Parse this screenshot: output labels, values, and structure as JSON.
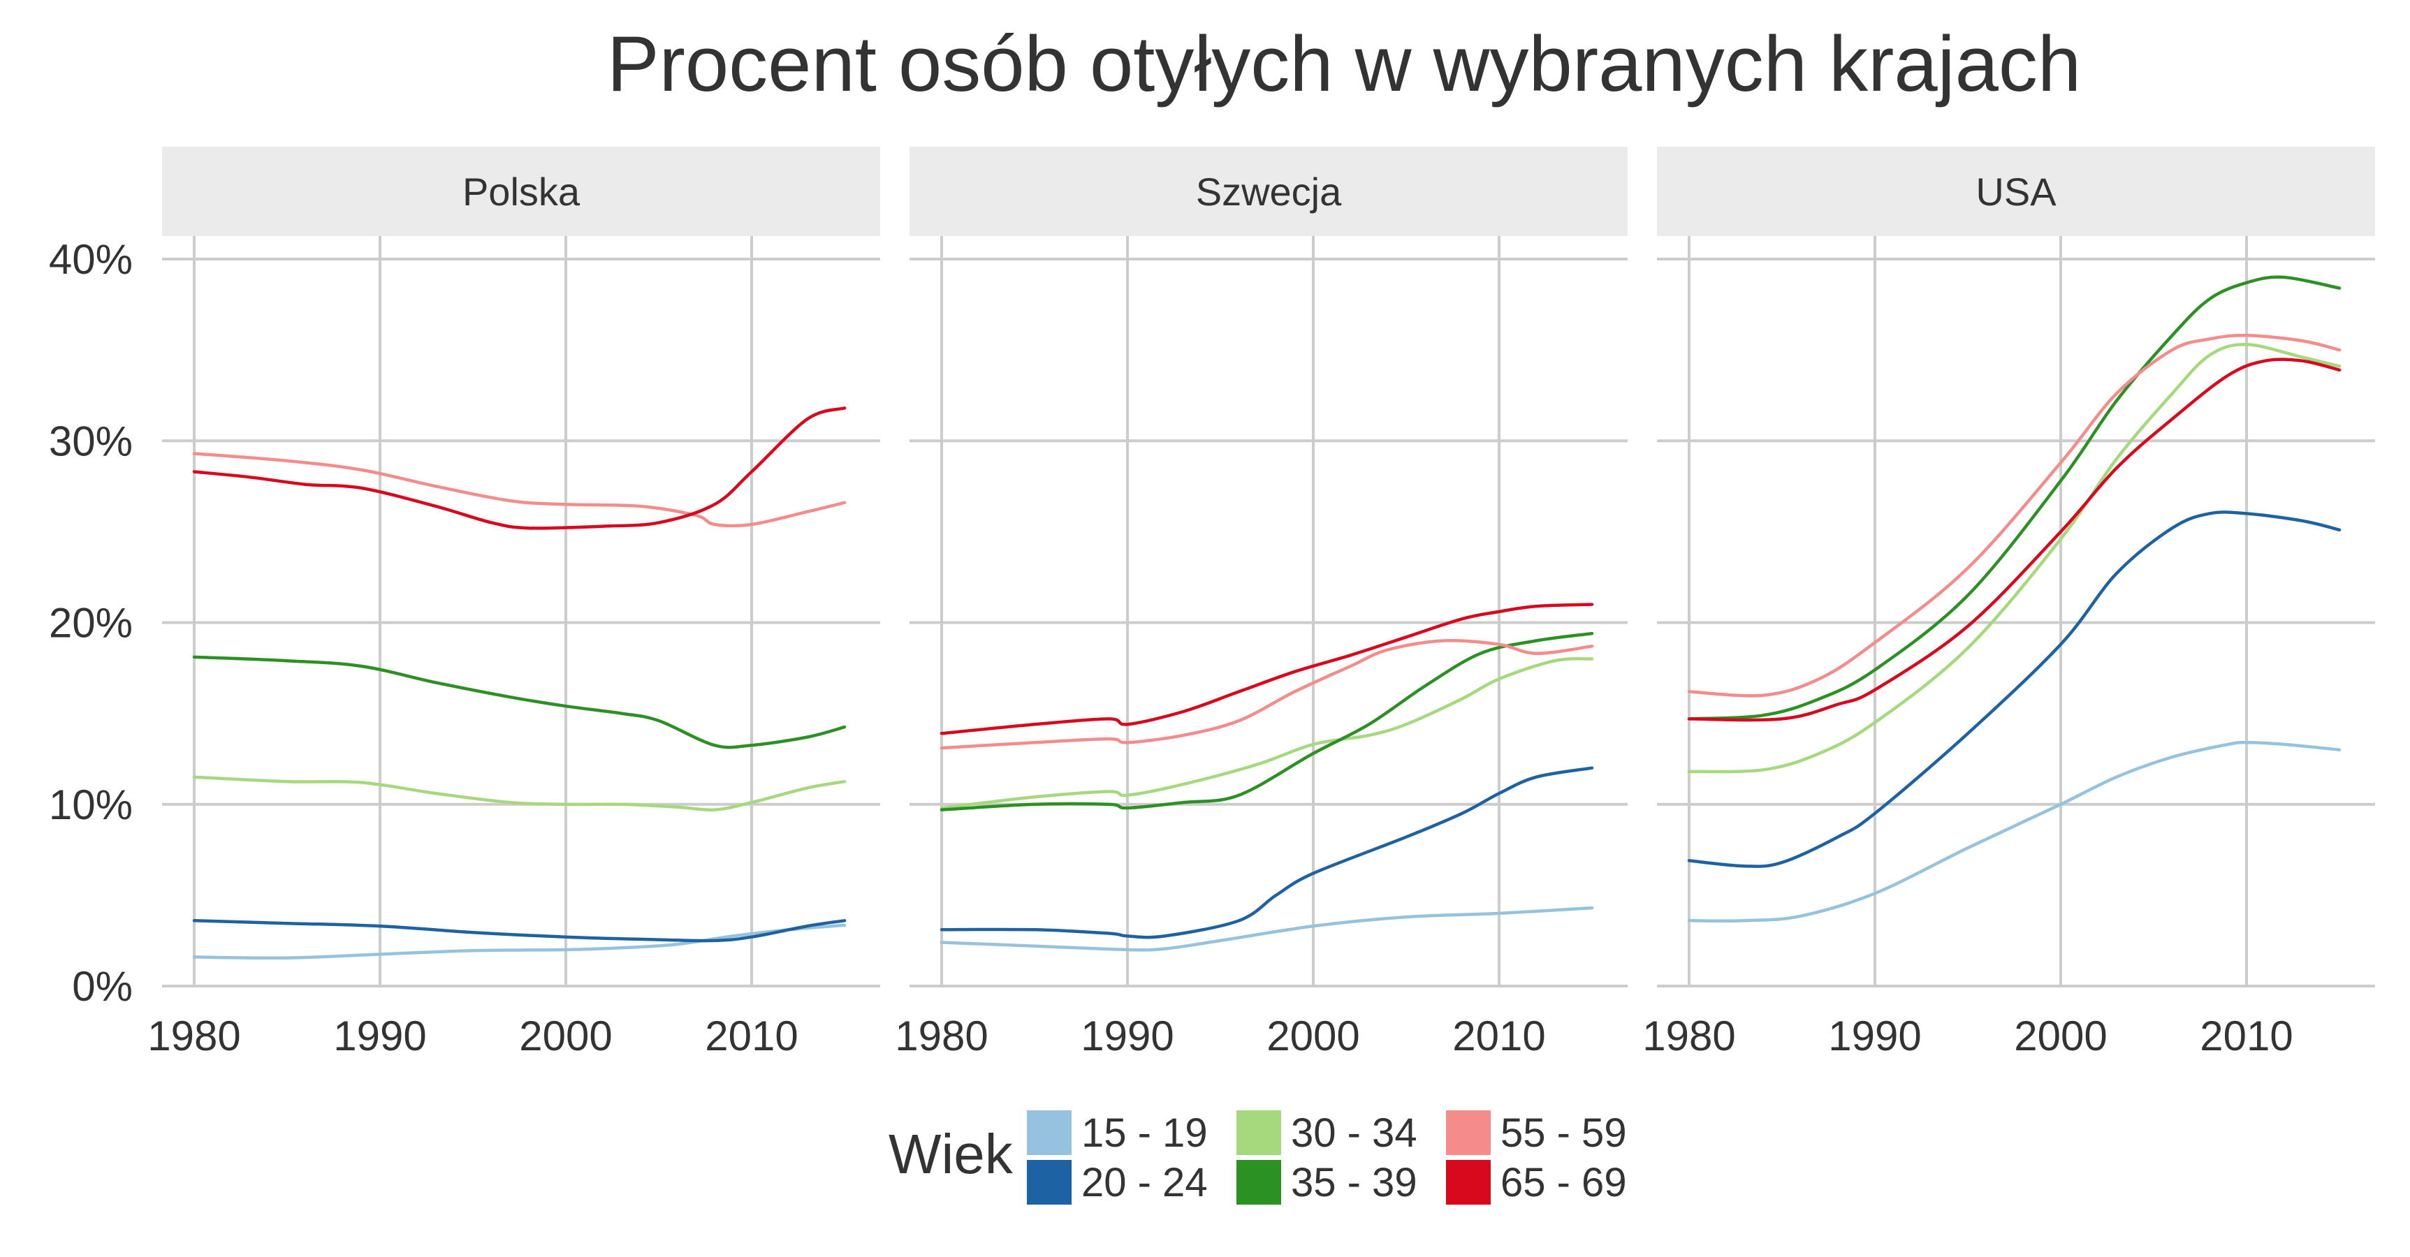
{
  "chart_data": {
    "type": "line",
    "title": "Procent osób otyłych w wybranych krajach",
    "xlabel": "",
    "ylabel": "",
    "xlim": [
      1978.3,
      2016.7
    ],
    "ylim": [
      0,
      40
    ],
    "x_ticks": [
      1980,
      1990,
      2000,
      2010
    ],
    "x_tick_labels": [
      "1980",
      "1990",
      "2000",
      "2010"
    ],
    "y_ticks": [
      0,
      10,
      20,
      30,
      40
    ],
    "y_tick_labels": [
      "0%",
      "10%",
      "20%",
      "30%",
      "40%"
    ],
    "grid": true,
    "legend": {
      "title": "Wiek",
      "position": "bottom",
      "entries": [
        {
          "label": "15 - 19",
          "color": "#95c3df"
        },
        {
          "label": "20 - 24",
          "color": "#1d62a2"
        },
        {
          "label": "30 - 34",
          "color": "#a6d97d"
        },
        {
          "label": "35 - 39",
          "color": "#2b9122"
        },
        {
          "label": "55 - 59",
          "color": "#f58b8b"
        },
        {
          "label": "65 - 69",
          "color": "#d8081d"
        }
      ]
    },
    "panels": [
      {
        "name": "Polska",
        "series": [
          {
            "name": "15 - 19",
            "color": "#95c3df",
            "points": [
              [
                1980,
                1.6
              ],
              [
                1985,
                1.55
              ],
              [
                1990,
                1.75
              ],
              [
                1995,
                1.95
              ],
              [
                2000,
                2.0
              ],
              [
                2003,
                2.1
              ],
              [
                2006,
                2.3
              ],
              [
                2009,
                2.75
              ],
              [
                2012,
                3.1
              ],
              [
                2015,
                3.35
              ]
            ]
          },
          {
            "name": "20 - 24",
            "color": "#1d62a2",
            "points": [
              [
                1980,
                3.6
              ],
              [
                1985,
                3.45
              ],
              [
                1990,
                3.3
              ],
              [
                1995,
                2.95
              ],
              [
                2000,
                2.7
              ],
              [
                2005,
                2.55
              ],
              [
                2008,
                2.5
              ],
              [
                2010,
                2.7
              ],
              [
                2013,
                3.3
              ],
              [
                2015,
                3.6
              ]
            ]
          },
          {
            "name": "30 - 34",
            "color": "#a6d97d",
            "points": [
              [
                1980,
                11.5
              ],
              [
                1985,
                11.25
              ],
              [
                1989,
                11.2
              ],
              [
                1993,
                10.6
              ],
              [
                1997,
                10.1
              ],
              [
                2000,
                10.0
              ],
              [
                2003,
                10.0
              ],
              [
                2006,
                9.85
              ],
              [
                2008,
                9.7
              ],
              [
                2010,
                10.1
              ],
              [
                2013,
                10.9
              ],
              [
                2015,
                11.25
              ]
            ]
          },
          {
            "name": "35 - 39",
            "color": "#2b9122",
            "points": [
              [
                1980,
                18.1
              ],
              [
                1985,
                17.9
              ],
              [
                1989,
                17.6
              ],
              [
                1993,
                16.7
              ],
              [
                1997,
                15.9
              ],
              [
                2000,
                15.4
              ],
              [
                2003,
                15.0
              ],
              [
                2005,
                14.6
              ],
              [
                2008,
                13.25
              ],
              [
                2010,
                13.25
              ],
              [
                2013,
                13.7
              ],
              [
                2015,
                14.25
              ]
            ]
          },
          {
            "name": "55 - 59",
            "color": "#f58b8b",
            "points": [
              [
                1980,
                29.3
              ],
              [
                1985,
                28.9
              ],
              [
                1989,
                28.4
              ],
              [
                1993,
                27.5
              ],
              [
                1997,
                26.7
              ],
              [
                2000,
                26.5
              ],
              [
                2004,
                26.4
              ],
              [
                2007,
                25.9
              ],
              [
                2008,
                25.4
              ],
              [
                2010,
                25.4
              ],
              [
                2013,
                26.1
              ],
              [
                2015,
                26.6
              ]
            ]
          },
          {
            "name": "65 - 69",
            "color": "#d8081d",
            "points": [
              [
                1980,
                28.3
              ],
              [
                1983,
                28.0
              ],
              [
                1986,
                27.6
              ],
              [
                1989,
                27.4
              ],
              [
                1993,
                26.4
              ],
              [
                1996,
                25.5
              ],
              [
                1998,
                25.2
              ],
              [
                2002,
                25.3
              ],
              [
                2005,
                25.5
              ],
              [
                2008,
                26.5
              ],
              [
                2010,
                28.3
              ],
              [
                2013,
                31.2
              ],
              [
                2015,
                31.8
              ]
            ]
          }
        ]
      },
      {
        "name": "Szwecja",
        "series": [
          {
            "name": "15 - 19",
            "color": "#95c3df",
            "points": [
              [
                1980,
                2.4
              ],
              [
                1985,
                2.2
              ],
              [
                1990,
                2.0
              ],
              [
                1992,
                2.05
              ],
              [
                1995,
                2.5
              ],
              [
                2000,
                3.3
              ],
              [
                2005,
                3.8
              ],
              [
                2010,
                4.0
              ],
              [
                2015,
                4.3
              ]
            ]
          },
          {
            "name": "20 - 24",
            "color": "#1d62a2",
            "points": [
              [
                1980,
                3.1
              ],
              [
                1985,
                3.1
              ],
              [
                1989,
                2.9
              ],
              [
                1990,
                2.75
              ],
              [
                1992,
                2.75
              ],
              [
                1996,
                3.6
              ],
              [
                1998,
                5.0
              ],
              [
                2000,
                6.2
              ],
              [
                2005,
                8.2
              ],
              [
                2008,
                9.5
              ],
              [
                2010,
                10.6
              ],
              [
                2012,
                11.5
              ],
              [
                2015,
                12.0
              ]
            ]
          },
          {
            "name": "30 - 34",
            "color": "#a6d97d",
            "points": [
              [
                1980,
                9.8
              ],
              [
                1985,
                10.4
              ],
              [
                1989,
                10.7
              ],
              [
                1990,
                10.5
              ],
              [
                1993,
                11.1
              ],
              [
                1997,
                12.2
              ],
              [
                2000,
                13.3
              ],
              [
                2003,
                13.8
              ],
              [
                2005,
                14.4
              ],
              [
                2008,
                15.8
              ],
              [
                2010,
                16.9
              ],
              [
                2013,
                17.9
              ],
              [
                2015,
                18.0
              ]
            ]
          },
          {
            "name": "35 - 39",
            "color": "#2b9122",
            "points": [
              [
                1980,
                9.7
              ],
              [
                1985,
                10.0
              ],
              [
                1989,
                10.0
              ],
              [
                1990,
                9.8
              ],
              [
                1993,
                10.1
              ],
              [
                1996,
                10.5
              ],
              [
                2000,
                12.8
              ],
              [
                2003,
                14.4
              ],
              [
                2006,
                16.5
              ],
              [
                2009,
                18.3
              ],
              [
                2012,
                19.0
              ],
              [
                2015,
                19.4
              ]
            ]
          },
          {
            "name": "55 - 59",
            "color": "#f58b8b",
            "points": [
              [
                1980,
                13.1
              ],
              [
                1985,
                13.4
              ],
              [
                1989,
                13.6
              ],
              [
                1990,
                13.4
              ],
              [
                1993,
                13.8
              ],
              [
                1996,
                14.6
              ],
              [
                1999,
                16.2
              ],
              [
                2002,
                17.6
              ],
              [
                2004,
                18.5
              ],
              [
                2007,
                19.0
              ],
              [
                2010,
                18.8
              ],
              [
                2012,
                18.3
              ],
              [
                2015,
                18.7
              ]
            ]
          },
          {
            "name": "65 - 69",
            "color": "#d8081d",
            "points": [
              [
                1980,
                13.9
              ],
              [
                1985,
                14.4
              ],
              [
                1989,
                14.7
              ],
              [
                1990,
                14.4
              ],
              [
                1993,
                15.1
              ],
              [
                1996,
                16.2
              ],
              [
                1999,
                17.3
              ],
              [
                2002,
                18.2
              ],
              [
                2005,
                19.2
              ],
              [
                2008,
                20.2
              ],
              [
                2010,
                20.6
              ],
              [
                2012,
                20.9
              ],
              [
                2015,
                21.0
              ]
            ]
          }
        ]
      },
      {
        "name": "USA",
        "series": [
          {
            "name": "15 - 19",
            "color": "#95c3df",
            "points": [
              [
                1980,
                3.6
              ],
              [
                1983,
                3.6
              ],
              [
                1986,
                3.85
              ],
              [
                1990,
                5.1
              ],
              [
                1995,
                7.6
              ],
              [
                2000,
                10.0
              ],
              [
                2003,
                11.5
              ],
              [
                2006,
                12.6
              ],
              [
                2009,
                13.3
              ],
              [
                2010,
                13.4
              ],
              [
                2012,
                13.3
              ],
              [
                2015,
                13.0
              ]
            ]
          },
          {
            "name": "20 - 24",
            "color": "#1d62a2",
            "points": [
              [
                1980,
                6.9
              ],
              [
                1983,
                6.6
              ],
              [
                1985,
                6.8
              ],
              [
                1988,
                8.2
              ],
              [
                1990,
                9.5
              ],
              [
                1995,
                13.9
              ],
              [
                2000,
                18.8
              ],
              [
                2003,
                22.7
              ],
              [
                2006,
                25.2
              ],
              [
                2008,
                26.0
              ],
              [
                2010,
                26.0
              ],
              [
                2013,
                25.6
              ],
              [
                2015,
                25.1
              ]
            ]
          },
          {
            "name": "30 - 34",
            "color": "#a6d97d",
            "points": [
              [
                1980,
                11.8
              ],
              [
                1984,
                11.9
              ],
              [
                1987,
                12.8
              ],
              [
                1990,
                14.5
              ],
              [
                1995,
                18.6
              ],
              [
                2000,
                24.6
              ],
              [
                2003,
                29.0
              ],
              [
                2006,
                32.6
              ],
              [
                2008,
                34.7
              ],
              [
                2010,
                35.3
              ],
              [
                2013,
                34.6
              ],
              [
                2015,
                34.1
              ]
            ]
          },
          {
            "name": "35 - 39",
            "color": "#2b9122",
            "points": [
              [
                1980,
                14.7
              ],
              [
                1984,
                14.9
              ],
              [
                1987,
                15.8
              ],
              [
                1990,
                17.4
              ],
              [
                1995,
                21.5
              ],
              [
                2000,
                27.8
              ],
              [
                2003,
                32.2
              ],
              [
                2006,
                35.8
              ],
              [
                2008,
                37.8
              ],
              [
                2010,
                38.7
              ],
              [
                2012,
                39.0
              ],
              [
                2015,
                38.4
              ]
            ]
          },
          {
            "name": "55 - 59",
            "color": "#f58b8b",
            "points": [
              [
                1980,
                16.2
              ],
              [
                1984,
                16.0
              ],
              [
                1987,
                16.9
              ],
              [
                1990,
                18.9
              ],
              [
                1995,
                23.0
              ],
              [
                2000,
                28.8
              ],
              [
                2003,
                32.6
              ],
              [
                2006,
                35.0
              ],
              [
                2008,
                35.6
              ],
              [
                2010,
                35.8
              ],
              [
                2013,
                35.5
              ],
              [
                2015,
                35.0
              ]
            ]
          },
          {
            "name": "65 - 69",
            "color": "#d8081d",
            "points": [
              [
                1980,
                14.7
              ],
              [
                1985,
                14.7
              ],
              [
                1988,
                15.5
              ],
              [
                1990,
                16.3
              ],
              [
                1995,
                19.8
              ],
              [
                2000,
                25.0
              ],
              [
                2003,
                28.5
              ],
              [
                2006,
                31.2
              ],
              [
                2009,
                33.6
              ],
              [
                2011,
                34.4
              ],
              [
                2013,
                34.4
              ],
              [
                2015,
                33.9
              ]
            ]
          }
        ]
      }
    ]
  }
}
